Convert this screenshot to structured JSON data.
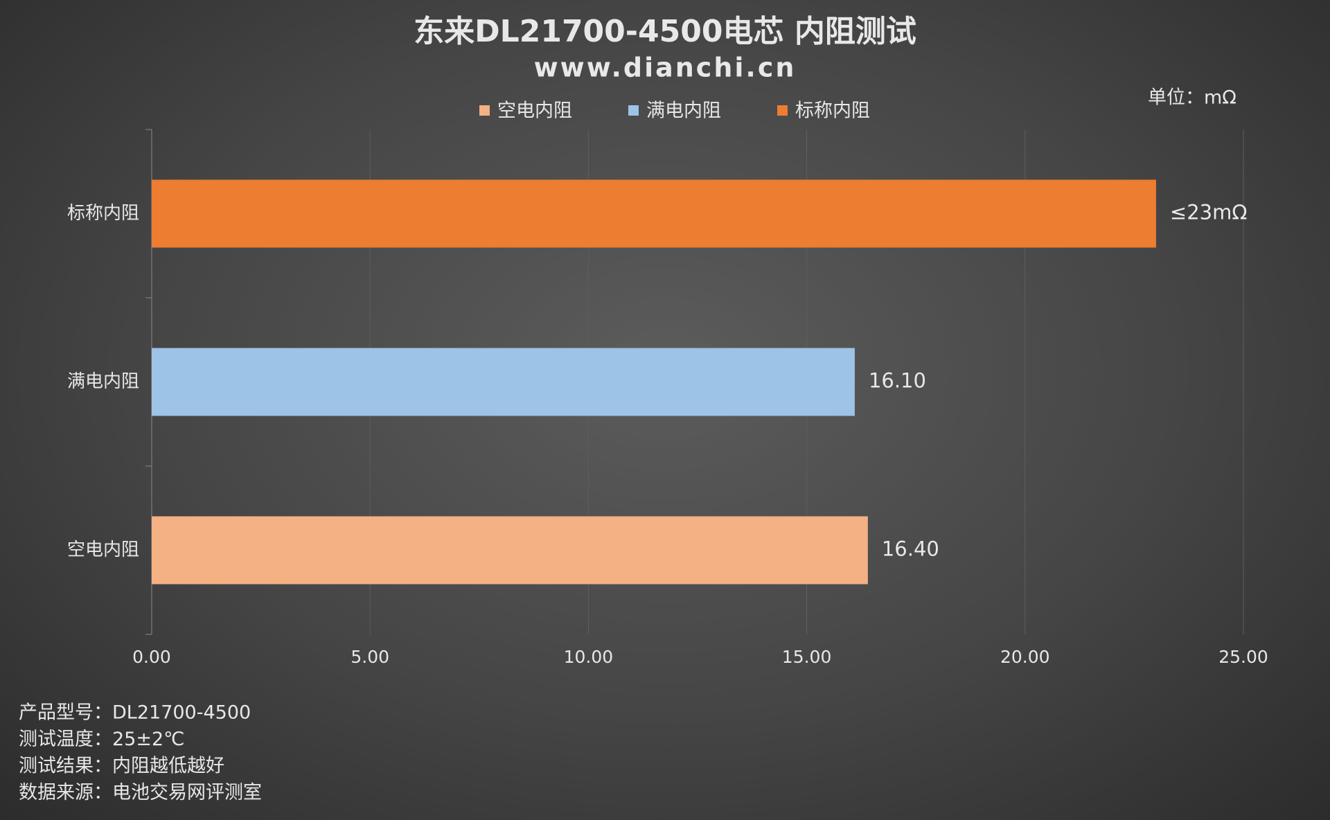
{
  "chart_data": {
    "type": "bar",
    "orientation": "horizontal",
    "title": "东来DL21700-4500电芯 内阻测试",
    "subtitle": "www.dianchi.cn",
    "unit": "单位：mΩ",
    "categories": [
      "空电内阻",
      "满电内阻",
      "标称内阻"
    ],
    "values": [
      16.4,
      16.1,
      23
    ],
    "value_labels": [
      "16.40",
      "16.10",
      "≤23mΩ"
    ],
    "colors": [
      "#f4b183",
      "#9dc3e6",
      "#ed7d31"
    ],
    "xlim": [
      0,
      25
    ],
    "xticks": [
      {
        "value": 0,
        "label": "0.00"
      },
      {
        "value": 5,
        "label": "5.00"
      },
      {
        "value": 10,
        "label": "10.00"
      },
      {
        "value": 15,
        "label": "15.00"
      },
      {
        "value": 20,
        "label": "20.00"
      },
      {
        "value": 25,
        "label": "25.00"
      }
    ],
    "grid": true,
    "notes": [
      "产品型号：DL21700-4500",
      "测试温度：25±2℃",
      "测试结果：内阻越低越好",
      "数据来源：电池交易网评测室"
    ]
  }
}
